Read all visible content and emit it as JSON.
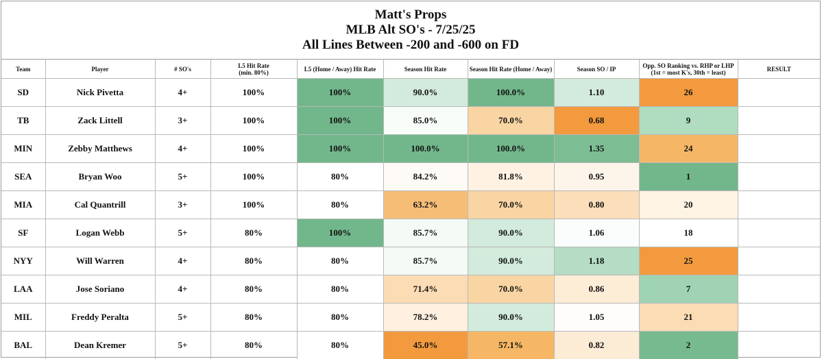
{
  "title_lines": [
    "Matt's Props",
    "MLB Alt SO's - 7/25/25",
    "All Lines Between -200 and -600 on FD"
  ],
  "headers": [
    "Team",
    "Player",
    "# SO's",
    "L5 Hit Rate\n(min. 80%)",
    "L5 (Home / Away) Hit Rate",
    "Season Hit Rate",
    "Season Hit Rate (Home / Away)",
    "Season SO / IP",
    "Opp. SO Ranking vs. RHP or LHP\n(1st = most K's, 30th = least)",
    "RESULT"
  ],
  "rows": [
    {
      "team": "SD",
      "player": "Nick Pivetta",
      "so": "4+",
      "l5": "100%",
      "l5ha": "100%",
      "season": "90.0%",
      "season_ha": "100.0%",
      "so_ip": "1.10",
      "opp_rank": "26",
      "result": ""
    },
    {
      "team": "TB",
      "player": "Zack Littell",
      "so": "3+",
      "l5": "100%",
      "l5ha": "100%",
      "season": "85.0%",
      "season_ha": "70.0%",
      "so_ip": "0.68",
      "opp_rank": "9",
      "result": ""
    },
    {
      "team": "MIN",
      "player": "Zebby Matthews",
      "so": "4+",
      "l5": "100%",
      "l5ha": "100%",
      "season": "100.0%",
      "season_ha": "100.0%",
      "so_ip": "1.35",
      "opp_rank": "24",
      "result": ""
    },
    {
      "team": "SEA",
      "player": "Bryan Woo",
      "so": "5+",
      "l5": "100%",
      "l5ha": "80%",
      "season": "84.2%",
      "season_ha": "81.8%",
      "so_ip": "0.95",
      "opp_rank": "1",
      "result": ""
    },
    {
      "team": "MIA",
      "player": "Cal Quantrill",
      "so": "3+",
      "l5": "100%",
      "l5ha": "80%",
      "season": "63.2%",
      "season_ha": "70.0%",
      "so_ip": "0.80",
      "opp_rank": "20",
      "result": ""
    },
    {
      "team": "SF",
      "player": "Logan Webb",
      "so": "5+",
      "l5": "80%",
      "l5ha": "100%",
      "season": "85.7%",
      "season_ha": "90.0%",
      "so_ip": "1.06",
      "opp_rank": "18",
      "result": ""
    },
    {
      "team": "NYY",
      "player": "Will Warren",
      "so": "4+",
      "l5": "80%",
      "l5ha": "80%",
      "season": "85.7%",
      "season_ha": "90.0%",
      "so_ip": "1.18",
      "opp_rank": "25",
      "result": ""
    },
    {
      "team": "LAA",
      "player": "Jose Soriano",
      "so": "4+",
      "l5": "80%",
      "l5ha": "80%",
      "season": "71.4%",
      "season_ha": "70.0%",
      "so_ip": "0.86",
      "opp_rank": "7",
      "result": ""
    },
    {
      "team": "MIL",
      "player": "Freddy Peralta",
      "so": "5+",
      "l5": "80%",
      "l5ha": "80%",
      "season": "78.2%",
      "season_ha": "90.0%",
      "so_ip": "1.05",
      "opp_rank": "21",
      "result": ""
    },
    {
      "team": "BAL",
      "player": "Dean Kremer",
      "so": "5+",
      "l5": "80%",
      "l5ha": "80%",
      "season": "45.0%",
      "season_ha": "57.1%",
      "so_ip": "0.82",
      "opp_rank": "2",
      "result": ""
    }
  ],
  "cell_colors": [
    {
      "l5ha": "#72b78b",
      "season": "#d2ebdc",
      "season_ha": "#72b78b",
      "so_ip": "#d2ebdc",
      "opp_rank": "#f29a3d"
    },
    {
      "l5ha": "#72b78b",
      "season": "#f7fcf9",
      "season_ha": "#f9d5a3",
      "so_ip": "#f29a3d",
      "opp_rank": "#b0dcc0"
    },
    {
      "l5ha": "#72b78b",
      "season": "#72b78b",
      "season_ha": "#72b78b",
      "so_ip": "#7dbd94",
      "opp_rank": "#f5b765"
    },
    {
      "l5ha": "#ffffff",
      "season": "#fefbf6",
      "season_ha": "#fff2e3",
      "so_ip": "#fdf5ea",
      "opp_rank": "#72b78b"
    },
    {
      "l5ha": "#ffffff",
      "season": "#f6bd77",
      "season_ha": "#f9d5a3",
      "so_ip": "#fbdfba",
      "opp_rank": "#fff3e3"
    },
    {
      "l5ha": "#72b78b",
      "season": "#f4faf6",
      "season_ha": "#d2ebdc",
      "so_ip": "#fafdfb",
      "opp_rank": "#ffffff"
    },
    {
      "l5ha": "#ffffff",
      "season": "#f4faf6",
      "season_ha": "#d2ebdc",
      "so_ip": "#b5dcc4",
      "opp_rank": "#f29a3d"
    },
    {
      "l5ha": "#ffffff",
      "season": "#fbdcb4",
      "season_ha": "#f9d5a3",
      "so_ip": "#fdecd6",
      "opp_rank": "#9fd3b4"
    },
    {
      "l5ha": "#ffffff",
      "season": "#fff0df",
      "season_ha": "#d2ebdc",
      "so_ip": "#fefdfb",
      "opp_rank": "#fbdcb4"
    },
    {
      "l5ha": "#ffffff",
      "season": "#f29a3d",
      "season_ha": "#f5b765",
      "so_ip": "#fcebd5",
      "opp_rank": "#77ba90"
    }
  ]
}
